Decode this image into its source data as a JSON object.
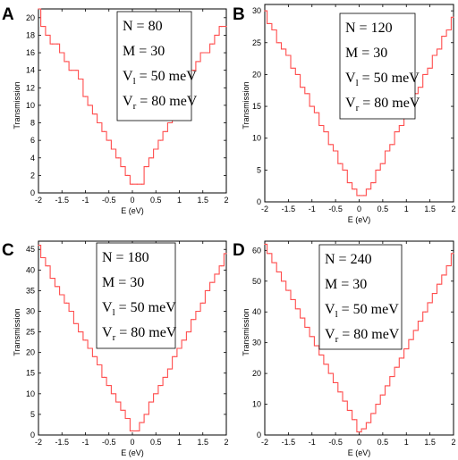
{
  "figure": {
    "curve_color": "#ff4d4d",
    "panels": [
      "A",
      "B",
      "C",
      "D"
    ]
  },
  "chart_data": [
    {
      "type": "line",
      "panel": "A",
      "xlabel": "E (eV)",
      "ylabel": "Transmission",
      "xlim": [
        -2,
        2
      ],
      "ylim": [
        0,
        21
      ],
      "xticks": [
        -2,
        -1.5,
        -1,
        -0.5,
        0,
        0.5,
        1,
        1.5,
        2
      ],
      "xtick_labels": [
        "-2",
        "-1.5",
        "-1",
        "-0.5",
        "0",
        "0.5",
        "1",
        "1.5",
        "2"
      ],
      "yticks": [
        0,
        2,
        4,
        6,
        8,
        10,
        12,
        14,
        16,
        18,
        20
      ],
      "ytick_labels": [
        "0",
        "2",
        "4",
        "6",
        "8",
        "10",
        "12",
        "14",
        "16",
        "18",
        "20"
      ],
      "annotation": [
        "N = 80",
        "M = 30",
        "V_l = 50 meV",
        "V_r = 80 meV"
      ],
      "series": [
        {
          "style": "staircase",
          "x": [
            -2,
            -1.9,
            -1.8,
            -1.7,
            -1.6,
            -1.5,
            -1.4,
            -1.3,
            -1.2,
            -1.1,
            -1.0,
            -0.9,
            -0.8,
            -0.7,
            -0.6,
            -0.5,
            -0.4,
            -0.3,
            -0.2,
            -0.1,
            0.0,
            0.1,
            0.2,
            0.3,
            0.4,
            0.5,
            0.6,
            0.7,
            0.8,
            0.9,
            1.0,
            1.1,
            1.2,
            1.3,
            1.4,
            1.5,
            1.6,
            1.7,
            1.8,
            1.9,
            2.0
          ],
          "y": [
            21,
            19,
            18,
            17,
            17,
            16,
            15,
            14,
            14,
            13,
            11,
            10,
            9,
            8,
            7,
            6,
            5,
            4,
            3,
            2,
            1,
            1,
            1,
            3,
            4,
            5,
            6,
            7,
            8,
            9,
            10,
            12,
            13,
            14,
            15,
            16,
            16,
            17,
            18,
            19,
            19
          ]
        }
      ]
    },
    {
      "type": "line",
      "panel": "B",
      "xlabel": "E (eV)",
      "ylabel": "Transmission",
      "xlim": [
        -2,
        2
      ],
      "ylim": [
        0,
        31
      ],
      "xticks": [
        -2,
        -1.5,
        -1,
        -0.5,
        0,
        0.5,
        1,
        1.5,
        2
      ],
      "xtick_labels": [
        "-2",
        "-1.5",
        "-1",
        "-0.5",
        "0",
        "0.5",
        "1",
        "1.5",
        "2"
      ],
      "yticks": [
        0,
        5,
        10,
        15,
        20,
        25,
        30
      ],
      "ytick_labels": [
        "0",
        "5",
        "10",
        "15",
        "20",
        "25",
        "30"
      ],
      "annotation": [
        "N = 120",
        "M = 30",
        "V_l = 50 meV",
        "V_r = 80 meV"
      ],
      "series": [
        {
          "style": "staircase",
          "x": [
            -2,
            -1.9,
            -1.8,
            -1.7,
            -1.6,
            -1.5,
            -1.4,
            -1.3,
            -1.2,
            -1.1,
            -1.0,
            -0.9,
            -0.8,
            -0.7,
            -0.6,
            -0.5,
            -0.4,
            -0.3,
            -0.2,
            -0.1,
            0.0,
            0.1,
            0.2,
            0.3,
            0.4,
            0.5,
            0.6,
            0.7,
            0.8,
            0.9,
            1.0,
            1.1,
            1.2,
            1.3,
            1.4,
            1.5,
            1.6,
            1.7,
            1.8,
            1.9,
            2.0
          ],
          "y": [
            30,
            28,
            27,
            25,
            24,
            23,
            21,
            20,
            18,
            17,
            15,
            14,
            12,
            11,
            9,
            8,
            6,
            5,
            3,
            2,
            1,
            1,
            2,
            3,
            5,
            6,
            8,
            9,
            11,
            12,
            14,
            15,
            17,
            18,
            20,
            21,
            23,
            24,
            26,
            27,
            29
          ]
        }
      ]
    },
    {
      "type": "line",
      "panel": "C",
      "xlabel": "E (eV)",
      "ylabel": "Transmission",
      "xlim": [
        -2,
        2
      ],
      "ylim": [
        0,
        47
      ],
      "xticks": [
        -2,
        -1.5,
        -1,
        -0.5,
        0,
        0.5,
        1,
        1.5,
        2
      ],
      "xtick_labels": [
        "-2",
        "-1.5",
        "-1",
        "-0.5",
        "0",
        "0.5",
        "1",
        "1.5",
        "2"
      ],
      "yticks": [
        0,
        5,
        10,
        15,
        20,
        25,
        30,
        35,
        40,
        45
      ],
      "ytick_labels": [
        "0",
        "5",
        "10",
        "15",
        "20",
        "25",
        "30",
        "35",
        "40",
        "45"
      ],
      "annotation": [
        "N = 180",
        "M = 30",
        "V_l = 50 meV",
        "V_r = 80 meV"
      ],
      "series": [
        {
          "style": "staircase",
          "x": [
            -2,
            -1.9,
            -1.8,
            -1.7,
            -1.6,
            -1.5,
            -1.4,
            -1.3,
            -1.2,
            -1.1,
            -1.0,
            -0.9,
            -0.8,
            -0.7,
            -0.6,
            -0.5,
            -0.4,
            -0.3,
            -0.2,
            -0.1,
            0.0,
            0.1,
            0.2,
            0.3,
            0.4,
            0.5,
            0.6,
            0.7,
            0.8,
            0.9,
            1.0,
            1.1,
            1.2,
            1.3,
            1.4,
            1.5,
            1.6,
            1.7,
            1.8,
            1.9,
            2.0
          ],
          "y": [
            46,
            43,
            41,
            38,
            36,
            34,
            32,
            30,
            27,
            25,
            23,
            21,
            19,
            17,
            14,
            12,
            10,
            8,
            6,
            4,
            1,
            1,
            3,
            5,
            8,
            10,
            12,
            14,
            16,
            19,
            21,
            23,
            25,
            28,
            30,
            32,
            35,
            37,
            39,
            41,
            44
          ]
        }
      ]
    },
    {
      "type": "line",
      "panel": "D",
      "xlabel": "E (eV)",
      "ylabel": "Transmission",
      "xlim": [
        -2,
        2
      ],
      "ylim": [
        0,
        63
      ],
      "xticks": [
        -2,
        -1.5,
        -1,
        -0.5,
        0,
        0.5,
        1,
        1.5,
        2
      ],
      "xtick_labels": [
        "-2",
        "-1.5",
        "-1",
        "-0.5",
        "0",
        "0.5",
        "1",
        "1.5",
        "2"
      ],
      "yticks": [
        0,
        10,
        20,
        30,
        40,
        50,
        60
      ],
      "ytick_labels": [
        "0",
        "10",
        "20",
        "30",
        "40",
        "50",
        "60"
      ],
      "annotation": [
        "N = 240",
        "M = 30",
        "V_l = 50 meV",
        "V_r = 80 meV"
      ],
      "series": [
        {
          "style": "staircase",
          "x": [
            -2,
            -1.9,
            -1.8,
            -1.7,
            -1.6,
            -1.5,
            -1.4,
            -1.3,
            -1.2,
            -1.1,
            -1.0,
            -0.9,
            -0.8,
            -0.7,
            -0.6,
            -0.5,
            -0.4,
            -0.3,
            -0.2,
            -0.1,
            0.0,
            0.1,
            0.2,
            0.3,
            0.4,
            0.5,
            0.6,
            0.7,
            0.8,
            0.9,
            1.0,
            1.1,
            1.2,
            1.3,
            1.4,
            1.5,
            1.6,
            1.7,
            1.8,
            1.9,
            2.0
          ],
          "y": [
            62,
            59,
            56,
            53,
            50,
            47,
            44,
            41,
            38,
            35,
            32,
            29,
            26,
            23,
            20,
            17,
            14,
            11,
            8,
            5,
            1,
            2,
            4,
            7,
            10,
            13,
            16,
            19,
            22,
            25,
            28,
            31,
            34,
            37,
            40,
            43,
            46,
            49,
            52,
            55,
            59
          ]
        }
      ]
    }
  ]
}
